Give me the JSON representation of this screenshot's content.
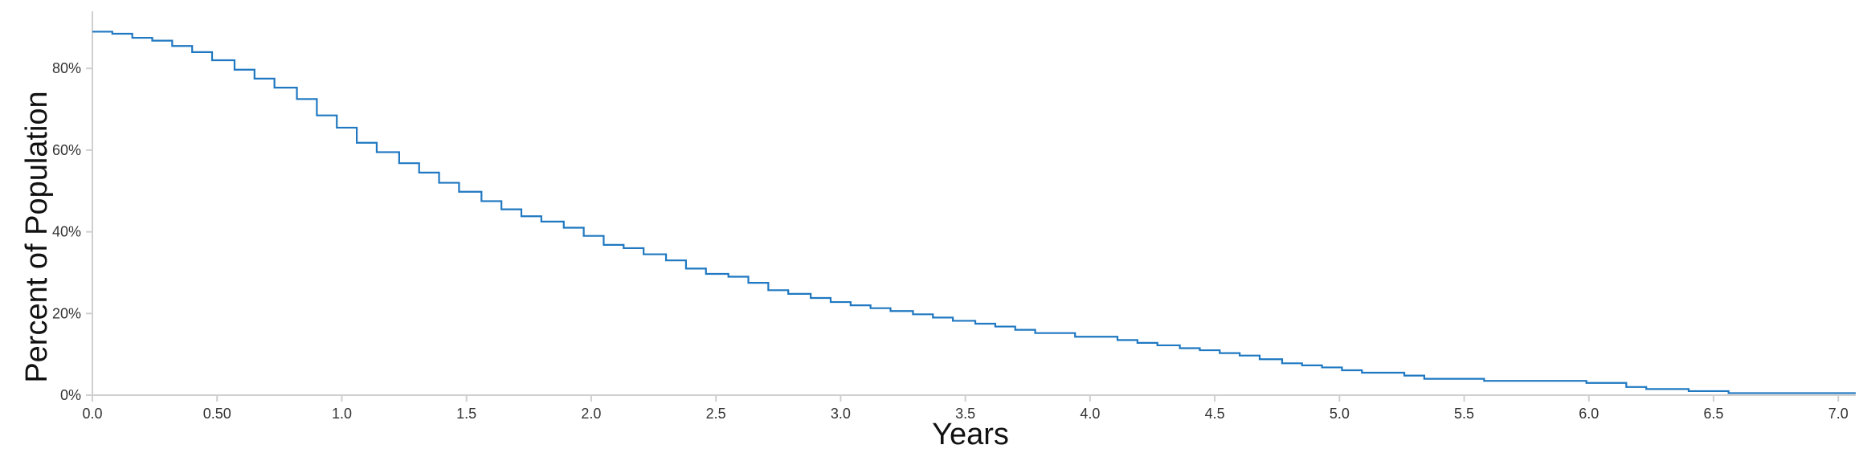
{
  "chart_data": {
    "type": "line",
    "step": true,
    "xlabel": "Years",
    "ylabel": "Percent of Population",
    "xlim": [
      0,
      7.07
    ],
    "ylim": [
      0,
      0.94
    ],
    "x_ticks": [
      0,
      0.5,
      1,
      1.5,
      2,
      2.5,
      3,
      3.5,
      4,
      4.5,
      5,
      5.5,
      6,
      6.5,
      7
    ],
    "x_tick_labels": [
      "0.0",
      "0.50",
      "1.0",
      "1.5",
      "2.0",
      "2.5",
      "3.0",
      "3.5",
      "4.0",
      "4.5",
      "5.0",
      "5.5",
      "6.0",
      "6.5",
      "7.0"
    ],
    "y_ticks": [
      0,
      0.2,
      0.4,
      0.6,
      0.8
    ],
    "y_tick_labels": [
      "0%",
      "20%",
      "40%",
      "60%",
      "80%"
    ],
    "grid": false,
    "line_color": "#1f78c1",
    "series": [
      {
        "x": [
          0,
          0.08,
          0.16,
          0.24,
          0.32,
          0.4,
          0.48,
          0.57,
          0.65,
          0.73,
          0.82,
          0.9,
          0.98,
          1.06,
          1.14,
          1.23,
          1.31,
          1.39,
          1.47,
          1.56,
          1.64,
          1.72,
          1.8,
          1.89,
          1.97,
          2.05,
          2.13,
          2.21,
          2.3,
          2.38,
          2.46,
          2.55,
          2.63,
          2.71,
          2.79,
          2.88,
          2.96,
          3.04,
          3.12,
          3.2,
          3.29,
          3.37,
          3.45,
          3.54,
          3.62,
          3.7,
          3.78,
          3.94,
          4.11,
          4.19,
          4.27,
          4.36,
          4.44,
          4.52,
          4.6,
          4.68,
          4.77,
          4.85,
          4.93,
          5.01,
          5.09,
          5.26,
          5.34,
          5.58,
          5.99,
          6.15,
          6.23,
          6.4,
          6.56,
          7.07
        ],
        "y": [
          0.89,
          0.885,
          0.875,
          0.868,
          0.855,
          0.84,
          0.82,
          0.797,
          0.775,
          0.753,
          0.725,
          0.685,
          0.655,
          0.618,
          0.595,
          0.568,
          0.545,
          0.52,
          0.498,
          0.475,
          0.455,
          0.438,
          0.425,
          0.41,
          0.39,
          0.368,
          0.36,
          0.345,
          0.33,
          0.31,
          0.297,
          0.29,
          0.275,
          0.257,
          0.248,
          0.238,
          0.228,
          0.22,
          0.213,
          0.206,
          0.198,
          0.19,
          0.182,
          0.175,
          0.168,
          0.16,
          0.152,
          0.143,
          0.135,
          0.128,
          0.122,
          0.115,
          0.11,
          0.103,
          0.097,
          0.088,
          0.078,
          0.073,
          0.068,
          0.061,
          0.055,
          0.048,
          0.04,
          0.035,
          0.03,
          0.02,
          0.015,
          0.01,
          0.005,
          0.005
        ]
      }
    ]
  }
}
